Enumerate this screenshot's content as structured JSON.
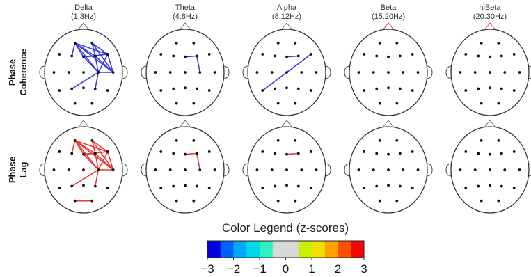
{
  "bands": [
    {
      "name": "Delta",
      "range": "(1:3Hz)"
    },
    {
      "name": "Theta",
      "range": "(4:8Hz)"
    },
    {
      "name": "Alpha",
      "range": "(8:12Hz)"
    },
    {
      "name": "Beta",
      "range": "(15:20Hz)"
    },
    {
      "name": "hiBeta",
      "range": "(20:30Hz)"
    }
  ],
  "rows": [
    {
      "label_line1": "Phase",
      "label_line2": "Coherence",
      "color": "#3a3ae0"
    },
    {
      "label_line1": "Phase",
      "label_line2": "Lag",
      "color": "#e83a3a"
    }
  ],
  "legend": {
    "title": "Color Legend (z-scores)",
    "ticks": [
      "-3",
      "-2",
      "-1",
      "0",
      "1",
      "2",
      "3"
    ],
    "colors": [
      "#0000e0",
      "#0060ff",
      "#00a8ff",
      "#00d8e8",
      "#30f0c0",
      "#d8d8d8",
      "#d8d8d8",
      "#c8f000",
      "#f0e000",
      "#ffa000",
      "#ff5000",
      "#ff0000"
    ]
  },
  "electrodes": {
    "Fp1": [
      -0.22,
      -0.68
    ],
    "Fp2": [
      0.22,
      -0.68
    ],
    "F7": [
      -0.62,
      -0.42
    ],
    "F3": [
      -0.3,
      -0.38
    ],
    "Fz": [
      0,
      -0.36
    ],
    "F4": [
      0.3,
      -0.38
    ],
    "F8": [
      0.62,
      -0.42
    ],
    "T3": [
      -0.76,
      0
    ],
    "C3": [
      -0.38,
      0
    ],
    "Cz": [
      0,
      0
    ],
    "C4": [
      0.38,
      0
    ],
    "T4": [
      0.76,
      0
    ],
    "T5": [
      -0.62,
      0.42
    ],
    "P3": [
      -0.3,
      0.38
    ],
    "Pz": [
      0,
      0.36
    ],
    "P4": [
      0.3,
      0.38
    ],
    "T6": [
      0.62,
      0.42
    ],
    "O1": [
      -0.22,
      0.72
    ],
    "O2": [
      0.22,
      0.72
    ]
  },
  "connections": [
    [
      [
        [
          "Fp1",
          "Fz"
        ],
        [
          "Fp1",
          "F4"
        ],
        [
          "Fp1",
          "F8"
        ],
        [
          "Fp1",
          "T4"
        ],
        [
          "Fp1",
          "C4"
        ],
        [
          "Fp2",
          "F4"
        ],
        [
          "Fp2",
          "F8"
        ],
        [
          "Fp2",
          "T4"
        ],
        [
          "Fz",
          "F8"
        ],
        [
          "Fz",
          "F4"
        ],
        [
          "F4",
          "T4"
        ],
        [
          "F8",
          "T4"
        ],
        [
          "C4",
          "T4"
        ],
        [
          "C4",
          "P3"
        ],
        [
          "C4",
          "P4"
        ],
        [
          "Fz",
          "C4"
        ],
        [
          "Fp1",
          "F3"
        ],
        [
          "F4",
          "C4"
        ],
        [
          "F8",
          "C4"
        ]
      ],
      [
        [
          "Fz",
          "F4"
        ],
        [
          "F4",
          "C4"
        ]
      ],
      [
        [
          "Fz",
          "F4"
        ],
        [
          "T5",
          "F8"
        ]
      ],
      [],
      []
    ],
    [
      [
        [
          "Fp1",
          "Fz"
        ],
        [
          "Fp1",
          "F4"
        ],
        [
          "Fp1",
          "F8"
        ],
        [
          "Fp1",
          "T4"
        ],
        [
          "Fp1",
          "C4"
        ],
        [
          "Fp2",
          "F4"
        ],
        [
          "Fp2",
          "F8"
        ],
        [
          "Fp2",
          "T4"
        ],
        [
          "Fz",
          "F8"
        ],
        [
          "Fz",
          "F4"
        ],
        [
          "F4",
          "T4"
        ],
        [
          "F8",
          "T4"
        ],
        [
          "C4",
          "T4"
        ],
        [
          "C4",
          "P3"
        ],
        [
          "C4",
          "P4"
        ],
        [
          "Fz",
          "C4"
        ],
        [
          "Fp1",
          "F3"
        ],
        [
          "F4",
          "C4"
        ],
        [
          "F8",
          "C4"
        ],
        [
          "O1",
          "O2"
        ]
      ],
      [
        [
          "Fz",
          "F4"
        ],
        [
          "F4",
          "C4"
        ]
      ],
      [
        [
          "Fz",
          "F4"
        ]
      ],
      [],
      []
    ]
  ],
  "nose_highlight": [
    [
      false,
      false,
      false,
      true,
      true
    ],
    [
      false,
      false,
      false,
      false,
      false
    ]
  ]
}
